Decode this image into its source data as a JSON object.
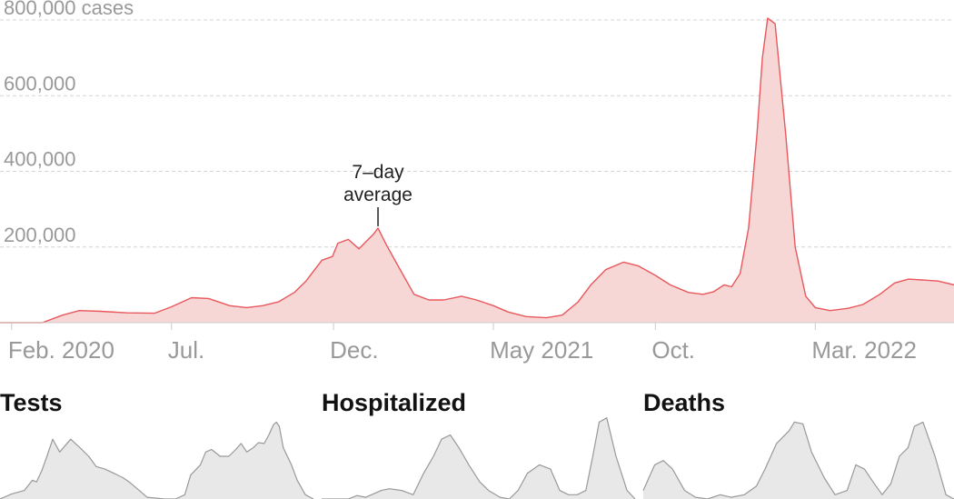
{
  "chart_data": [
    {
      "type": "area",
      "title": "",
      "ylabel_unit": "cases",
      "y_tick_labels": [
        "800,000 cases",
        "600,000",
        "400,000",
        "200,000"
      ],
      "y_ticks": [
        800000,
        600000,
        400000,
        200000
      ],
      "ylim": [
        0,
        810000
      ],
      "x_tick_labels": [
        "Feb. 2020",
        "Jul.",
        "Dec.",
        "May 2021",
        "Oct.",
        "Mar. 2022"
      ],
      "x_ticks": [
        "2020-02-01",
        "2020-07-01",
        "2020-12-01",
        "2021-05-01",
        "2021-10-01",
        "2022-03-01"
      ],
      "xlim": [
        "2020-01-21",
        "2022-07-10"
      ],
      "grid": true,
      "color": "#e8585c",
      "fill_color": "#f7d6d6",
      "annotation": {
        "text_lines": [
          "7–day",
          "average"
        ],
        "x": "2021-01-12",
        "y": 250000
      },
      "series": [
        {
          "x": [
            "2020-01-21",
            "2020-03-01",
            "2020-03-20",
            "2020-04-05",
            "2020-04-25",
            "2020-05-20",
            "2020-06-15",
            "2020-07-01",
            "2020-07-20",
            "2020-08-05",
            "2020-08-25",
            "2020-09-10",
            "2020-09-25",
            "2020-10-10",
            "2020-10-25",
            "2020-11-05",
            "2020-11-20",
            "2020-11-30",
            "2020-12-05",
            "2020-12-15",
            "2020-12-25",
            "2021-01-01",
            "2021-01-08",
            "2021-01-12",
            "2021-01-20",
            "2021-02-01",
            "2021-02-15",
            "2021-03-01",
            "2021-03-15",
            "2021-04-01",
            "2021-04-15",
            "2021-05-01",
            "2021-05-15",
            "2021-06-01",
            "2021-06-20",
            "2021-07-05",
            "2021-07-20",
            "2021-08-01",
            "2021-08-15",
            "2021-09-01",
            "2021-09-15",
            "2021-10-01",
            "2021-10-15",
            "2021-11-01",
            "2021-11-15",
            "2021-11-25",
            "2021-12-05",
            "2021-12-12",
            "2021-12-20",
            "2021-12-28",
            "2022-01-05",
            "2022-01-10",
            "2022-01-15",
            "2022-01-22",
            "2022-02-01",
            "2022-02-10",
            "2022-02-20",
            "2022-03-01",
            "2022-03-15",
            "2022-04-01",
            "2022-04-15",
            "2022-05-01",
            "2022-05-15",
            "2022-05-28",
            "2022-06-10",
            "2022-06-25",
            "2022-07-10"
          ],
          "y": [
            0,
            0,
            20000,
            32000,
            30000,
            26000,
            25000,
            42000,
            66000,
            64000,
            45000,
            40000,
            45000,
            55000,
            80000,
            110000,
            165000,
            175000,
            210000,
            220000,
            195000,
            215000,
            235000,
            250000,
            205000,
            145000,
            75000,
            60000,
            60000,
            70000,
            60000,
            45000,
            28000,
            16000,
            13000,
            20000,
            55000,
            100000,
            140000,
            160000,
            150000,
            125000,
            100000,
            80000,
            75000,
            82000,
            100000,
            95000,
            130000,
            250000,
            500000,
            700000,
            805000,
            790000,
            500000,
            200000,
            70000,
            40000,
            32000,
            38000,
            48000,
            75000,
            105000,
            115000,
            113000,
            110000,
            100000
          ]
        }
      ]
    },
    {
      "type": "area",
      "title": "Tests",
      "color": "#999999",
      "fill_color": "#e8e8e8",
      "ylim": [
        0,
        1
      ],
      "series": [
        {
          "x": [
            "2020-09-20",
            "2020-10-10",
            "2020-11-01",
            "2020-11-15",
            "2020-11-22",
            "2020-12-01",
            "2020-12-10",
            "2020-12-20",
            "2021-01-01",
            "2021-01-10",
            "2021-01-20",
            "2021-02-05",
            "2021-02-20",
            "2021-03-05",
            "2021-03-20",
            "2021-04-05",
            "2021-04-20",
            "2021-05-01",
            "2021-06-01",
            "2021-07-01",
            "2021-07-20",
            "2021-08-05",
            "2021-08-15",
            "2021-09-01",
            "2021-09-10",
            "2021-09-20",
            "2021-10-05",
            "2021-10-20",
            "2021-11-01",
            "2021-11-10",
            "2021-11-20",
            "2021-12-01",
            "2021-12-10",
            "2021-12-20",
            "2021-12-28",
            "2022-01-05",
            "2022-01-10",
            "2022-01-15",
            "2022-01-22",
            "2022-02-05",
            "2022-02-15",
            "2022-03-01",
            "2022-03-15"
          ],
          "y": [
            0,
            0.06,
            0.1,
            0.22,
            0.2,
            0.33,
            0.5,
            0.7,
            0.55,
            0.62,
            0.7,
            0.6,
            0.5,
            0.38,
            0.35,
            0.3,
            0.25,
            0.2,
            0.02,
            0,
            0,
            0.05,
            0.28,
            0.4,
            0.55,
            0.58,
            0.5,
            0.5,
            0.58,
            0.65,
            0.55,
            0.6,
            0.66,
            0.65,
            0.75,
            0.87,
            0.9,
            0.85,
            0.6,
            0.4,
            0.22,
            0.05,
            0
          ]
        }
      ]
    },
    {
      "type": "area",
      "title": "Hospitalized",
      "color": "#999999",
      "fill_color": "#e8e8e8",
      "ylim": [
        0,
        1
      ],
      "series": [
        {
          "x": [
            "2020-09-20",
            "2020-10-15",
            "2020-11-05",
            "2020-11-20",
            "2020-12-05",
            "2021-01-01",
            "2021-01-15",
            "2021-02-05",
            "2021-02-25",
            "2021-03-15",
            "2021-04-01",
            "2021-04-15",
            "2021-04-30",
            "2021-05-15",
            "2021-06-01",
            "2021-06-20",
            "2021-07-05",
            "2021-07-25",
            "2021-08-10",
            "2021-08-25",
            "2021-09-10",
            "2021-10-01",
            "2021-10-20",
            "2021-11-05",
            "2021-11-20",
            "2021-12-05",
            "2021-12-20",
            "2022-01-01",
            "2022-01-12",
            "2022-01-25",
            "2022-02-10",
            "2022-03-01",
            "2022-03-15"
          ],
          "y": [
            0,
            0,
            0,
            0.04,
            0.02,
            0.1,
            0.12,
            0.1,
            0.05,
            0.3,
            0.5,
            0.7,
            0.75,
            0.6,
            0.4,
            0.2,
            0.1,
            0.02,
            0,
            0.1,
            0.3,
            0.4,
            0.35,
            0.1,
            0.05,
            0.05,
            0.1,
            0.5,
            0.9,
            0.95,
            0.5,
            0.1,
            0
          ]
        }
      ]
    },
    {
      "type": "area",
      "title": "Deaths",
      "color": "#999999",
      "fill_color": "#e8e8e8",
      "ylim": [
        0,
        1
      ],
      "series": [
        {
          "x": [
            "2020-09-20",
            "2020-10-10",
            "2020-10-25",
            "2020-11-10",
            "2020-12-01",
            "2020-12-20",
            "2021-01-10",
            "2021-02-01",
            "2021-02-20",
            "2021-03-15",
            "2021-04-05",
            "2021-04-20",
            "2021-05-10",
            "2021-06-01",
            "2021-06-10",
            "2021-06-25",
            "2021-07-10",
            "2021-08-01",
            "2021-08-20",
            "2021-09-10",
            "2021-09-25",
            "2021-10-10",
            "2021-10-25",
            "2021-11-10",
            "2021-11-25",
            "2021-12-10",
            "2021-12-25",
            "2022-01-05",
            "2022-01-20",
            "2022-02-10",
            "2022-03-01",
            "2022-03-15"
          ],
          "y": [
            0.1,
            0.4,
            0.45,
            0.35,
            0.1,
            0.02,
            0.0,
            0.05,
            0.02,
            0.05,
            0.15,
            0.35,
            0.65,
            0.8,
            0.9,
            0.88,
            0.55,
            0.25,
            0.05,
            0.1,
            0.4,
            0.35,
            0.2,
            0.05,
            0.18,
            0.5,
            0.6,
            0.85,
            0.9,
            0.5,
            0.05,
            0
          ]
        }
      ]
    }
  ]
}
